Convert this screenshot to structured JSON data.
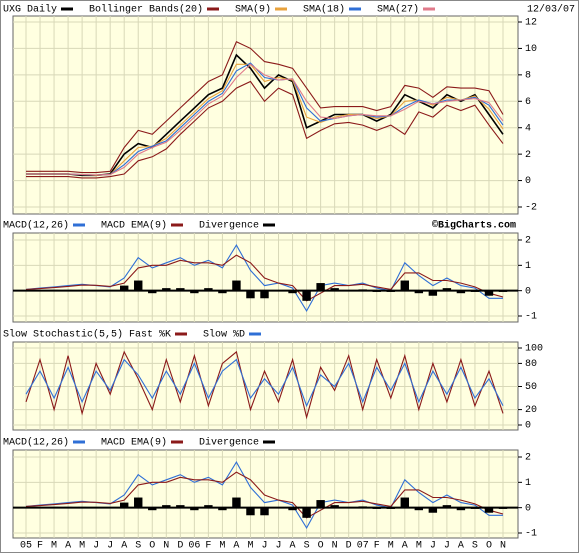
{
  "chart_data": [
    {
      "type": "line",
      "date": "12/03/07",
      "ylim": [
        -2,
        12
      ],
      "yticks": [
        -2,
        0,
        2,
        4,
        6,
        8,
        10,
        12
      ],
      "grid": true,
      "series": [
        {
          "name": "UXG Daily",
          "color": "#000000",
          "values": [
            0.5,
            0.5,
            0.5,
            0.5,
            0.4,
            0.4,
            0.5,
            2.0,
            2.8,
            2.5,
            3.5,
            4.5,
            5.5,
            6.5,
            7.0,
            9.5,
            8.5,
            7.0,
            8.0,
            7.5,
            4.0,
            4.5,
            5.0,
            5.0,
            5.0,
            4.5,
            5.0,
            6.5,
            6.0,
            5.5,
            6.5,
            6.0,
            6.5,
            5.0,
            3.5
          ]
        },
        {
          "name": "Bollinger Bands(20)",
          "color": "#8b1a1a",
          "values": [
            0.7,
            0.7,
            0.7,
            0.7,
            0.6,
            0.6,
            0.7,
            2.5,
            3.8,
            3.5,
            4.5,
            5.5,
            6.5,
            7.5,
            8.0,
            10.5,
            10.0,
            9.0,
            8.8,
            8.5,
            7.0,
            5.5,
            5.6,
            5.6,
            5.6,
            5.3,
            5.6,
            7.2,
            7.0,
            6.3,
            7.1,
            7.0,
            7.0,
            6.8,
            5.0
          ],
          "lower": [
            0.3,
            0.3,
            0.3,
            0.3,
            0.2,
            0.2,
            0.3,
            0.5,
            1.5,
            1.8,
            2.4,
            3.5,
            4.5,
            5.5,
            6.0,
            7.0,
            7.5,
            6.0,
            7.0,
            6.5,
            3.2,
            3.8,
            4.3,
            4.4,
            4.2,
            3.8,
            4.2,
            3.5,
            5.2,
            4.8,
            5.7,
            5.3,
            5.7,
            4.2,
            2.8
          ]
        },
        {
          "name": "SMA(9)",
          "color": "#e8a23c",
          "values": [
            0.5,
            0.5,
            0.5,
            0.5,
            0.45,
            0.4,
            0.45,
            1.5,
            2.5,
            2.6,
            3.2,
            4.2,
            5.2,
            6.2,
            6.8,
            8.8,
            8.8,
            7.5,
            7.8,
            7.6,
            4.8,
            4.4,
            4.8,
            5.0,
            5.0,
            4.7,
            4.9,
            6.0,
            6.1,
            5.7,
            6.3,
            6.1,
            6.4,
            5.4,
            3.9
          ]
        },
        {
          "name": "SMA(18)",
          "color": "#2f6fd6",
          "values": [
            0.5,
            0.5,
            0.5,
            0.5,
            0.45,
            0.42,
            0.45,
            1.2,
            2.2,
            2.6,
            3.0,
            4.0,
            5.0,
            6.0,
            6.6,
            8.3,
            8.9,
            7.8,
            7.6,
            7.7,
            5.5,
            4.5,
            4.7,
            4.9,
            5.0,
            4.8,
            4.9,
            5.6,
            6.1,
            5.8,
            6.1,
            6.1,
            6.3,
            5.7,
            4.2
          ]
        },
        {
          "name": "SMA(27)",
          "color": "#e07a8a",
          "values": [
            0.5,
            0.5,
            0.5,
            0.5,
            0.46,
            0.43,
            0.45,
            1.0,
            2.0,
            2.5,
            2.9,
            3.8,
            4.8,
            5.8,
            6.4,
            7.8,
            8.8,
            8.0,
            7.6,
            7.7,
            6.0,
            4.8,
            4.7,
            4.9,
            5.0,
            4.9,
            4.9,
            5.4,
            6.0,
            5.8,
            6.0,
            6.1,
            6.2,
            5.9,
            4.5
          ]
        }
      ]
    },
    {
      "type": "line",
      "annotation": "©BigCharts.com",
      "ylim": [
        -1,
        2
      ],
      "yticks": [
        -1,
        0,
        1,
        2
      ],
      "grid": true,
      "series": [
        {
          "name": "MACD(12,26)",
          "color": "#2f6fd6",
          "values": [
            0.05,
            0.1,
            0.15,
            0.2,
            0.25,
            0.2,
            0.15,
            0.5,
            1.3,
            0.9,
            1.1,
            1.3,
            1.0,
            1.2,
            0.9,
            1.8,
            0.8,
            0.2,
            0.3,
            0.1,
            -0.8,
            0.2,
            0.3,
            0.2,
            0.3,
            0.1,
            0.0,
            1.1,
            0.6,
            0.2,
            0.5,
            0.2,
            0.1,
            -0.3,
            -0.3
          ]
        },
        {
          "name": "MACD EMA(9)",
          "color": "#8b1a1a",
          "values": [
            0.05,
            0.08,
            0.12,
            0.17,
            0.22,
            0.21,
            0.17,
            0.3,
            0.9,
            1.0,
            1.0,
            1.2,
            1.1,
            1.1,
            1.0,
            1.4,
            1.1,
            0.5,
            0.3,
            0.2,
            -0.4,
            -0.1,
            0.2,
            0.2,
            0.25,
            0.15,
            0.05,
            0.7,
            0.7,
            0.4,
            0.4,
            0.3,
            0.15,
            -0.1,
            -0.25
          ]
        },
        {
          "name": "Divergence",
          "color": "#000000",
          "type": "bar",
          "values": [
            0,
            0.02,
            0.03,
            0.03,
            0.03,
            -0.01,
            -0.02,
            0.2,
            0.4,
            -0.1,
            0.1,
            0.1,
            -0.1,
            0.1,
            -0.1,
            0.4,
            -0.3,
            -0.3,
            0,
            -0.1,
            -0.4,
            0.3,
            0.1,
            0,
            0.05,
            -0.05,
            -0.05,
            0.4,
            -0.1,
            -0.2,
            0.1,
            -0.1,
            -0.05,
            -0.2,
            -0.05
          ]
        }
      ]
    },
    {
      "type": "line",
      "title": "Slow Stochastic(5,5)",
      "ylim": [
        0,
        100
      ],
      "yticks": [
        0,
        20,
        50,
        80,
        100
      ],
      "grid": true,
      "series": [
        {
          "name": "Fast %K",
          "color": "#8b1a1a",
          "values": [
            30,
            85,
            20,
            90,
            15,
            80,
            40,
            95,
            60,
            20,
            85,
            30,
            90,
            25,
            80,
            95,
            20,
            70,
            30,
            85,
            10,
            75,
            45,
            90,
            20,
            85,
            35,
            90,
            20,
            80,
            30,
            85,
            25,
            70,
            15
          ]
        },
        {
          "name": "Slow %D",
          "color": "#2f6fd6",
          "values": [
            40,
            70,
            35,
            75,
            30,
            70,
            45,
            85,
            65,
            35,
            70,
            40,
            80,
            35,
            70,
            85,
            35,
            60,
            40,
            75,
            25,
            65,
            50,
            80,
            30,
            75,
            45,
            80,
            30,
            70,
            40,
            75,
            35,
            60,
            25
          ]
        }
      ]
    },
    {
      "type": "line",
      "ylim": [
        -1,
        2
      ],
      "yticks": [
        -1,
        0,
        1,
        2
      ],
      "grid": true,
      "categories": [
        "05",
        "F",
        "M",
        "A",
        "M",
        "J",
        "J",
        "A",
        "S",
        "O",
        "N",
        "D",
        "06",
        "F",
        "M",
        "A",
        "M",
        "J",
        "J",
        "A",
        "S",
        "O",
        "N",
        "D",
        "07",
        "F",
        "M",
        "A",
        "M",
        "J",
        "J",
        "A",
        "S",
        "O",
        "N"
      ],
      "series": [
        {
          "name": "MACD(12,26)",
          "color": "#2f6fd6",
          "values": [
            0.05,
            0.1,
            0.15,
            0.2,
            0.25,
            0.2,
            0.15,
            0.5,
            1.3,
            0.9,
            1.1,
            1.3,
            1.0,
            1.2,
            0.9,
            1.8,
            0.8,
            0.2,
            0.3,
            0.1,
            -0.8,
            0.2,
            0.3,
            0.2,
            0.3,
            0.1,
            0.0,
            1.1,
            0.6,
            0.2,
            0.5,
            0.2,
            0.1,
            -0.3,
            -0.3
          ]
        },
        {
          "name": "MACD EMA(9)",
          "color": "#8b1a1a",
          "values": [
            0.05,
            0.08,
            0.12,
            0.17,
            0.22,
            0.21,
            0.17,
            0.3,
            0.9,
            1.0,
            1.0,
            1.2,
            1.1,
            1.1,
            1.0,
            1.4,
            1.1,
            0.5,
            0.3,
            0.2,
            -0.4,
            -0.1,
            0.2,
            0.2,
            0.25,
            0.15,
            0.05,
            0.7,
            0.7,
            0.4,
            0.4,
            0.3,
            0.15,
            -0.1,
            -0.25
          ]
        },
        {
          "name": "Divergence",
          "color": "#000000",
          "type": "bar",
          "values": [
            0,
            0.02,
            0.03,
            0.03,
            0.03,
            -0.01,
            -0.02,
            0.2,
            0.4,
            -0.1,
            0.1,
            0.1,
            -0.1,
            0.1,
            -0.1,
            0.4,
            -0.3,
            -0.3,
            0,
            -0.1,
            -0.4,
            0.3,
            0.1,
            0,
            0.05,
            -0.05,
            -0.05,
            0.4,
            -0.1,
            -0.2,
            0.1,
            -0.1,
            -0.05,
            -0.2,
            -0.05
          ]
        }
      ]
    }
  ]
}
